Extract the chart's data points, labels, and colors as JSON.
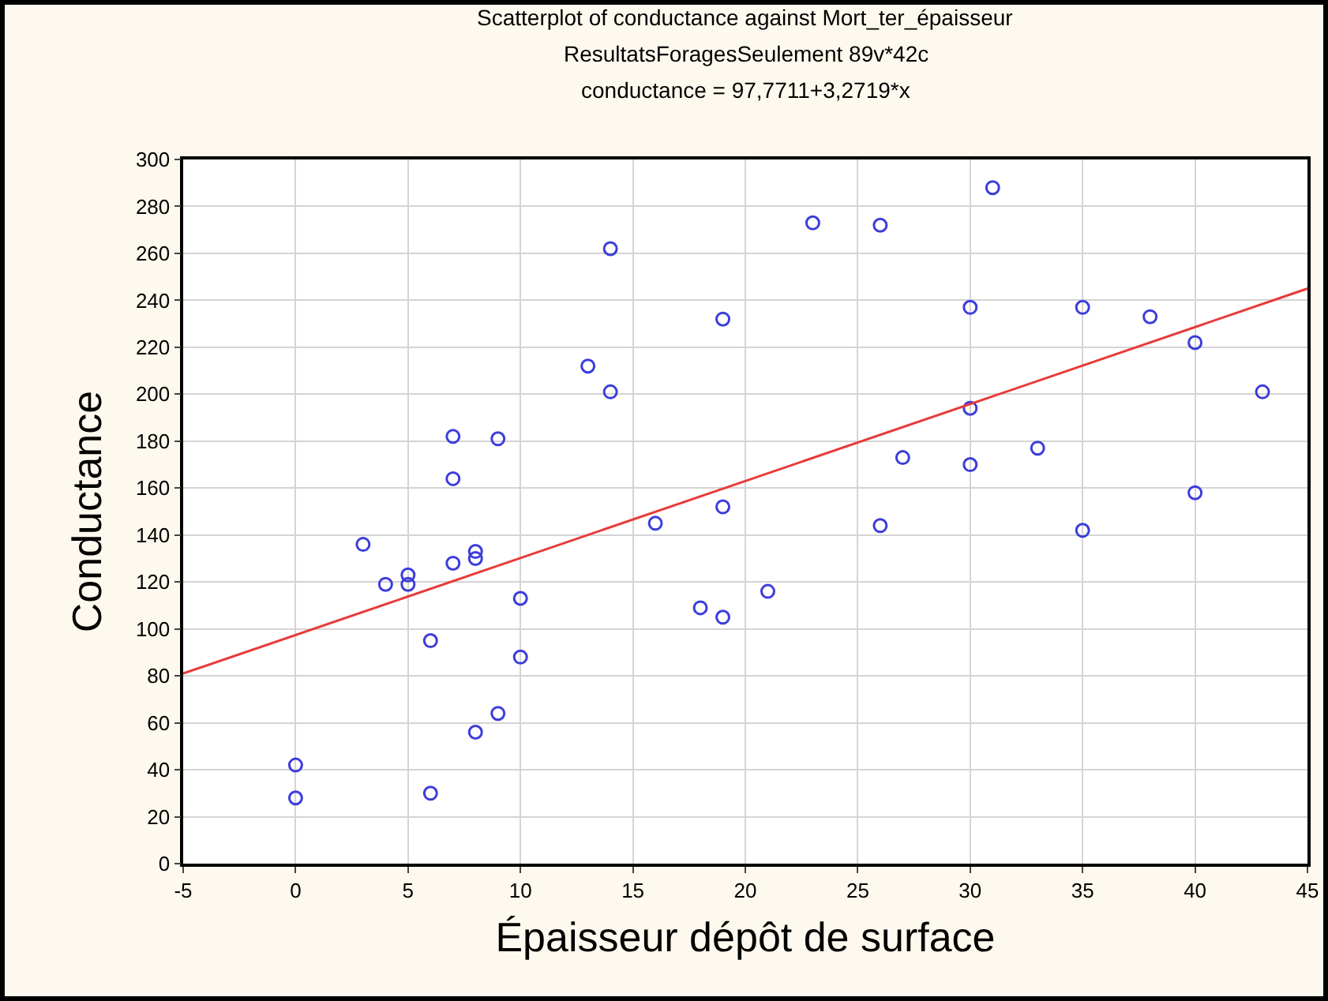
{
  "chart_data": {
    "type": "scatter",
    "title": "Scatterplot of conductance against Mort_ter_épaisseur",
    "subtitle": "ResultatsForagesSeulement 89v*42c",
    "annotations": [
      "conductance = 97,7711+3,2719*x"
    ],
    "xlabel": "Épaisseur dépôt de surface",
    "ylabel": "Conductance",
    "xlim": [
      -5,
      45
    ],
    "xticks": [
      -5,
      0,
      5,
      10,
      15,
      20,
      25,
      30,
      35,
      40,
      45
    ],
    "ylim": [
      0,
      300
    ],
    "yticks": [
      0,
      20,
      40,
      60,
      80,
      100,
      120,
      140,
      160,
      180,
      200,
      220,
      240,
      260,
      280,
      300
    ],
    "grid": true,
    "series": [
      {
        "marker": "circle",
        "color": "#3c3cdc",
        "x": [
          0,
          0,
          3,
          4,
          5,
          5,
          6,
          6,
          7,
          7,
          7,
          8,
          8,
          8,
          9,
          9,
          10,
          10,
          13,
          14,
          14,
          16,
          18,
          19,
          19,
          19,
          21,
          23,
          26,
          26,
          27,
          30,
          30,
          30,
          31,
          33,
          35,
          35,
          38,
          40,
          40,
          43
        ],
        "values": [
          42,
          28,
          136,
          119,
          123,
          119,
          95,
          30,
          182,
          164,
          128,
          133,
          130,
          56,
          181,
          64,
          113,
          88,
          212,
          262,
          201,
          145,
          109,
          232,
          152,
          105,
          116,
          273,
          272,
          144,
          173,
          237,
          194,
          170,
          288,
          177,
          237,
          142,
          233,
          222,
          158,
          201
        ]
      },
      {
        "type": "line",
        "color": "#e83a3a",
        "line_style": "solid",
        "x": [
          -5,
          45
        ],
        "values": [
          81,
          245
        ]
      }
    ]
  }
}
